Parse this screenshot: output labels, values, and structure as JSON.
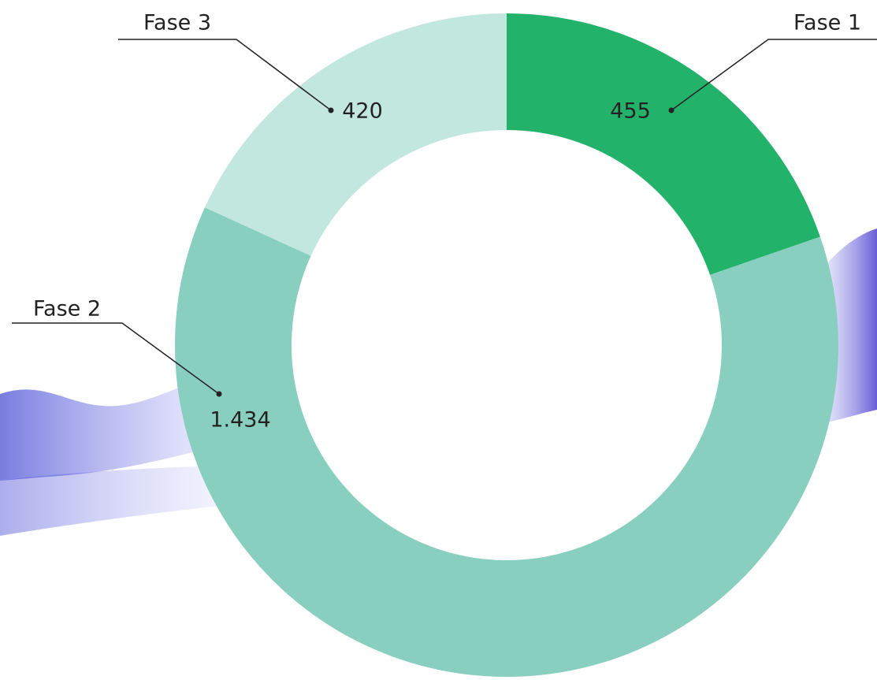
{
  "chart_data": {
    "type": "donut",
    "categories": [
      "Fase 1",
      "Fase 2",
      "Fase 3"
    ],
    "values": [
      455,
      1434,
      420
    ],
    "value_labels": [
      "455",
      "1.434",
      "420"
    ],
    "colors": [
      "#22b26a",
      "#88cfc0",
      "#c2e7de"
    ]
  }
}
